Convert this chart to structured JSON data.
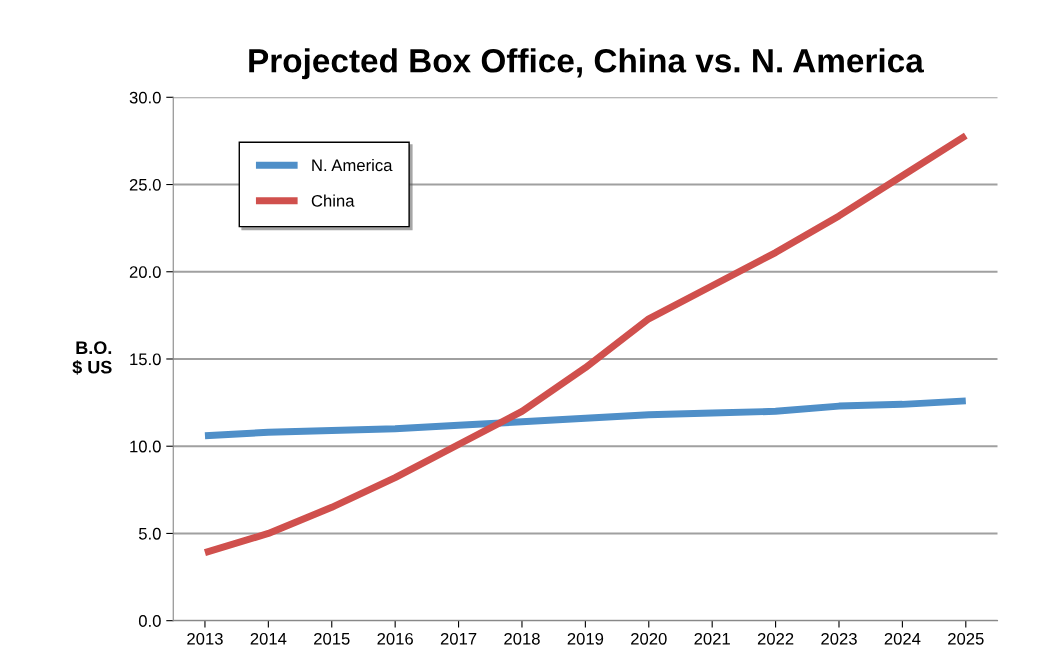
{
  "chart_data": {
    "type": "line",
    "title": "Projected Box Office, China vs. N. America",
    "ylabel": "B.O.\n$ US",
    "categories": [
      "2013",
      "2014",
      "2015",
      "2016",
      "2017",
      "2018",
      "2019",
      "2020",
      "2021",
      "2022",
      "2023",
      "2024",
      "2025"
    ],
    "series": [
      {
        "name": "N. America",
        "color": "#4f8fc8",
        "values": [
          10.6,
          10.8,
          10.9,
          11.0,
          11.2,
          11.4,
          11.6,
          11.8,
          11.9,
          12.0,
          12.3,
          12.4,
          12.6
        ]
      },
      {
        "name": "China",
        "color": "#d0504d",
        "values": [
          3.9,
          5.0,
          6.5,
          8.2,
          10.1,
          12.0,
          14.5,
          17.3,
          19.2,
          21.1,
          23.2,
          25.5,
          27.8
        ]
      }
    ],
    "ylim": [
      0,
      30
    ],
    "yticks": [
      {
        "value": 0,
        "label": "0.0"
      },
      {
        "value": 5,
        "label": "5.0"
      },
      {
        "value": 10,
        "label": "10.0"
      },
      {
        "value": 15,
        "label": "15.0"
      },
      {
        "value": 20,
        "label": "20.0"
      },
      {
        "value": 25,
        "label": "25.0"
      },
      {
        "value": 30,
        "label": "30.0"
      }
    ],
    "grid": "y",
    "legend": "top left",
    "marker": "none",
    "line_style": "solid"
  }
}
